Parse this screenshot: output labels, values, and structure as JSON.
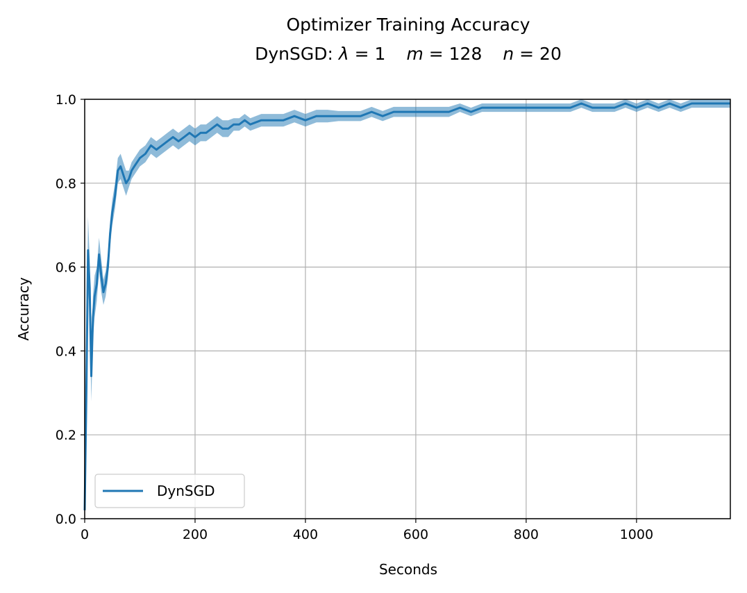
{
  "chart_data": {
    "type": "line",
    "title": "Optimizer Training Accuracy",
    "subtitle": {
      "prefix": "DynSGD: ",
      "lambda_symbol": "λ",
      "lambda_value": " = 1",
      "m_symbol": "m",
      "m_value": " = 128",
      "n_symbol": "n",
      "n_value": " = 20"
    },
    "xlabel": "Seconds",
    "ylabel": "Accuracy",
    "xlim": [
      0,
      1170
    ],
    "ylim": [
      0.0,
      1.0
    ],
    "x_ticks": [
      "0",
      "200",
      "400",
      "600",
      "800",
      "1000"
    ],
    "y_ticks": [
      "0.0",
      "0.2",
      "0.4",
      "0.6",
      "0.8",
      "1.0"
    ],
    "grid": true,
    "legend_position": "lower-left",
    "series": [
      {
        "name": "DynSGD",
        "color": "#1f77b4",
        "band_color": "#1f77b4",
        "x": [
          0,
          3,
          6,
          9,
          12,
          15,
          18,
          22,
          26,
          30,
          34,
          38,
          42,
          46,
          50,
          55,
          60,
          65,
          70,
          75,
          80,
          85,
          90,
          95,
          100,
          110,
          120,
          130,
          140,
          150,
          160,
          170,
          180,
          190,
          200,
          210,
          220,
          230,
          240,
          250,
          260,
          270,
          280,
          290,
          300,
          320,
          340,
          360,
          380,
          400,
          420,
          440,
          460,
          480,
          500,
          520,
          540,
          560,
          580,
          600,
          620,
          640,
          660,
          680,
          700,
          720,
          740,
          760,
          780,
          800,
          820,
          840,
          860,
          880,
          900,
          920,
          940,
          960,
          980,
          1000,
          1020,
          1040,
          1060,
          1080,
          1100,
          1120,
          1140,
          1160,
          1170
        ],
        "y": [
          0.02,
          0.3,
          0.64,
          0.55,
          0.34,
          0.48,
          0.53,
          0.56,
          0.63,
          0.58,
          0.54,
          0.56,
          0.6,
          0.68,
          0.73,
          0.77,
          0.83,
          0.84,
          0.82,
          0.8,
          0.81,
          0.83,
          0.84,
          0.85,
          0.86,
          0.87,
          0.89,
          0.88,
          0.89,
          0.9,
          0.91,
          0.9,
          0.91,
          0.92,
          0.91,
          0.92,
          0.92,
          0.93,
          0.94,
          0.93,
          0.93,
          0.94,
          0.94,
          0.95,
          0.94,
          0.95,
          0.95,
          0.95,
          0.96,
          0.95,
          0.96,
          0.96,
          0.96,
          0.96,
          0.96,
          0.97,
          0.96,
          0.97,
          0.97,
          0.97,
          0.97,
          0.97,
          0.97,
          0.98,
          0.97,
          0.98,
          0.98,
          0.98,
          0.98,
          0.98,
          0.98,
          0.98,
          0.98,
          0.98,
          0.99,
          0.98,
          0.98,
          0.98,
          0.99,
          0.98,
          0.99,
          0.98,
          0.99,
          0.98,
          0.99,
          0.99,
          0.99,
          0.99,
          0.99
        ],
        "band_halfwidth": [
          0.02,
          0.1,
          0.08,
          0.07,
          0.06,
          0.05,
          0.05,
          0.04,
          0.04,
          0.04,
          0.03,
          0.03,
          0.03,
          0.03,
          0.03,
          0.03,
          0.03,
          0.03,
          0.03,
          0.03,
          0.02,
          0.02,
          0.02,
          0.02,
          0.02,
          0.02,
          0.02,
          0.02,
          0.02,
          0.02,
          0.02,
          0.02,
          0.02,
          0.02,
          0.02,
          0.02,
          0.02,
          0.02,
          0.02,
          0.02,
          0.02,
          0.015,
          0.015,
          0.015,
          0.015,
          0.015,
          0.015,
          0.015,
          0.015,
          0.015,
          0.015,
          0.015,
          0.012,
          0.012,
          0.012,
          0.012,
          0.012,
          0.012,
          0.012,
          0.012,
          0.012,
          0.012,
          0.012,
          0.01,
          0.01,
          0.01,
          0.01,
          0.01,
          0.01,
          0.01,
          0.01,
          0.01,
          0.01,
          0.01,
          0.01,
          0.01,
          0.01,
          0.01,
          0.01,
          0.01,
          0.01,
          0.01,
          0.01,
          0.01,
          0.01,
          0.01,
          0.01,
          0.01,
          0.01
        ]
      }
    ]
  }
}
